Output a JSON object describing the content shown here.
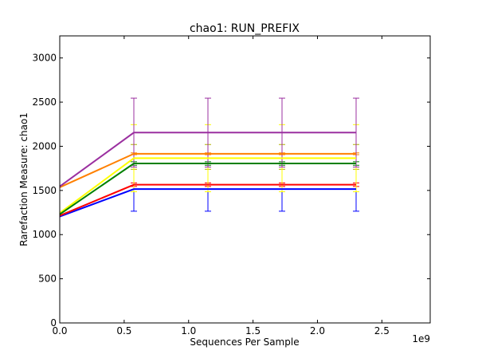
{
  "chart_data": {
    "type": "line",
    "title": "chao1: RUN_PREFIX",
    "xlabel": "Sequences Per Sample",
    "ylabel": "Rarefaction Measure: chao1",
    "x_offset_label": "1e9",
    "xlim": [
      0,
      2.875
    ],
    "ylim": [
      0,
      3250
    ],
    "x_ticks": [
      0,
      0.5,
      1.0,
      1.5,
      2.0,
      2.5
    ],
    "x_tick_labels": [
      "0.0",
      "0.5",
      "1.0",
      "1.5",
      "2.0",
      "2.5"
    ],
    "y_ticks": [
      0,
      500,
      1000,
      1500,
      2000,
      2500,
      3000
    ],
    "y_tick_labels": [
      "0",
      "500",
      "1000",
      "1500",
      "2000",
      "2500",
      "3000"
    ],
    "x": [
      0,
      0.575,
      1.15,
      1.725,
      2.3
    ],
    "grid": false,
    "series": [
      {
        "color": "#0000ff",
        "values": [
          1205,
          1515,
          1515,
          1515,
          1515
        ],
        "err": [
          0,
          250,
          250,
          250,
          250
        ]
      },
      {
        "color": "#ff0000",
        "values": [
          1215,
          1565,
          1565,
          1565,
          1565
        ],
        "err": [
          0,
          20,
          20,
          20,
          20
        ]
      },
      {
        "color": "#ffff00",
        "values": [
          1245,
          1865,
          1865,
          1865,
          1865
        ],
        "err": [
          0,
          380,
          380,
          380,
          380
        ]
      },
      {
        "color": "#008000",
        "values": [
          1230,
          1805,
          1805,
          1805,
          1805
        ],
        "err": [
          0,
          20,
          20,
          20,
          20
        ]
      },
      {
        "color": "#ff8000",
        "values": [
          1535,
          1915,
          1915,
          1915,
          1915
        ],
        "err": [
          0,
          10,
          10,
          10,
          10
        ]
      },
      {
        "color": "#9b30a0",
        "values": [
          1545,
          2155,
          2155,
          2155,
          2155
        ],
        "err": [
          0,
          390,
          390,
          390,
          390
        ]
      }
    ],
    "extra_error_bars": [
      {
        "color": "#b0b000",
        "center": 1880,
        "err": 140
      }
    ]
  }
}
